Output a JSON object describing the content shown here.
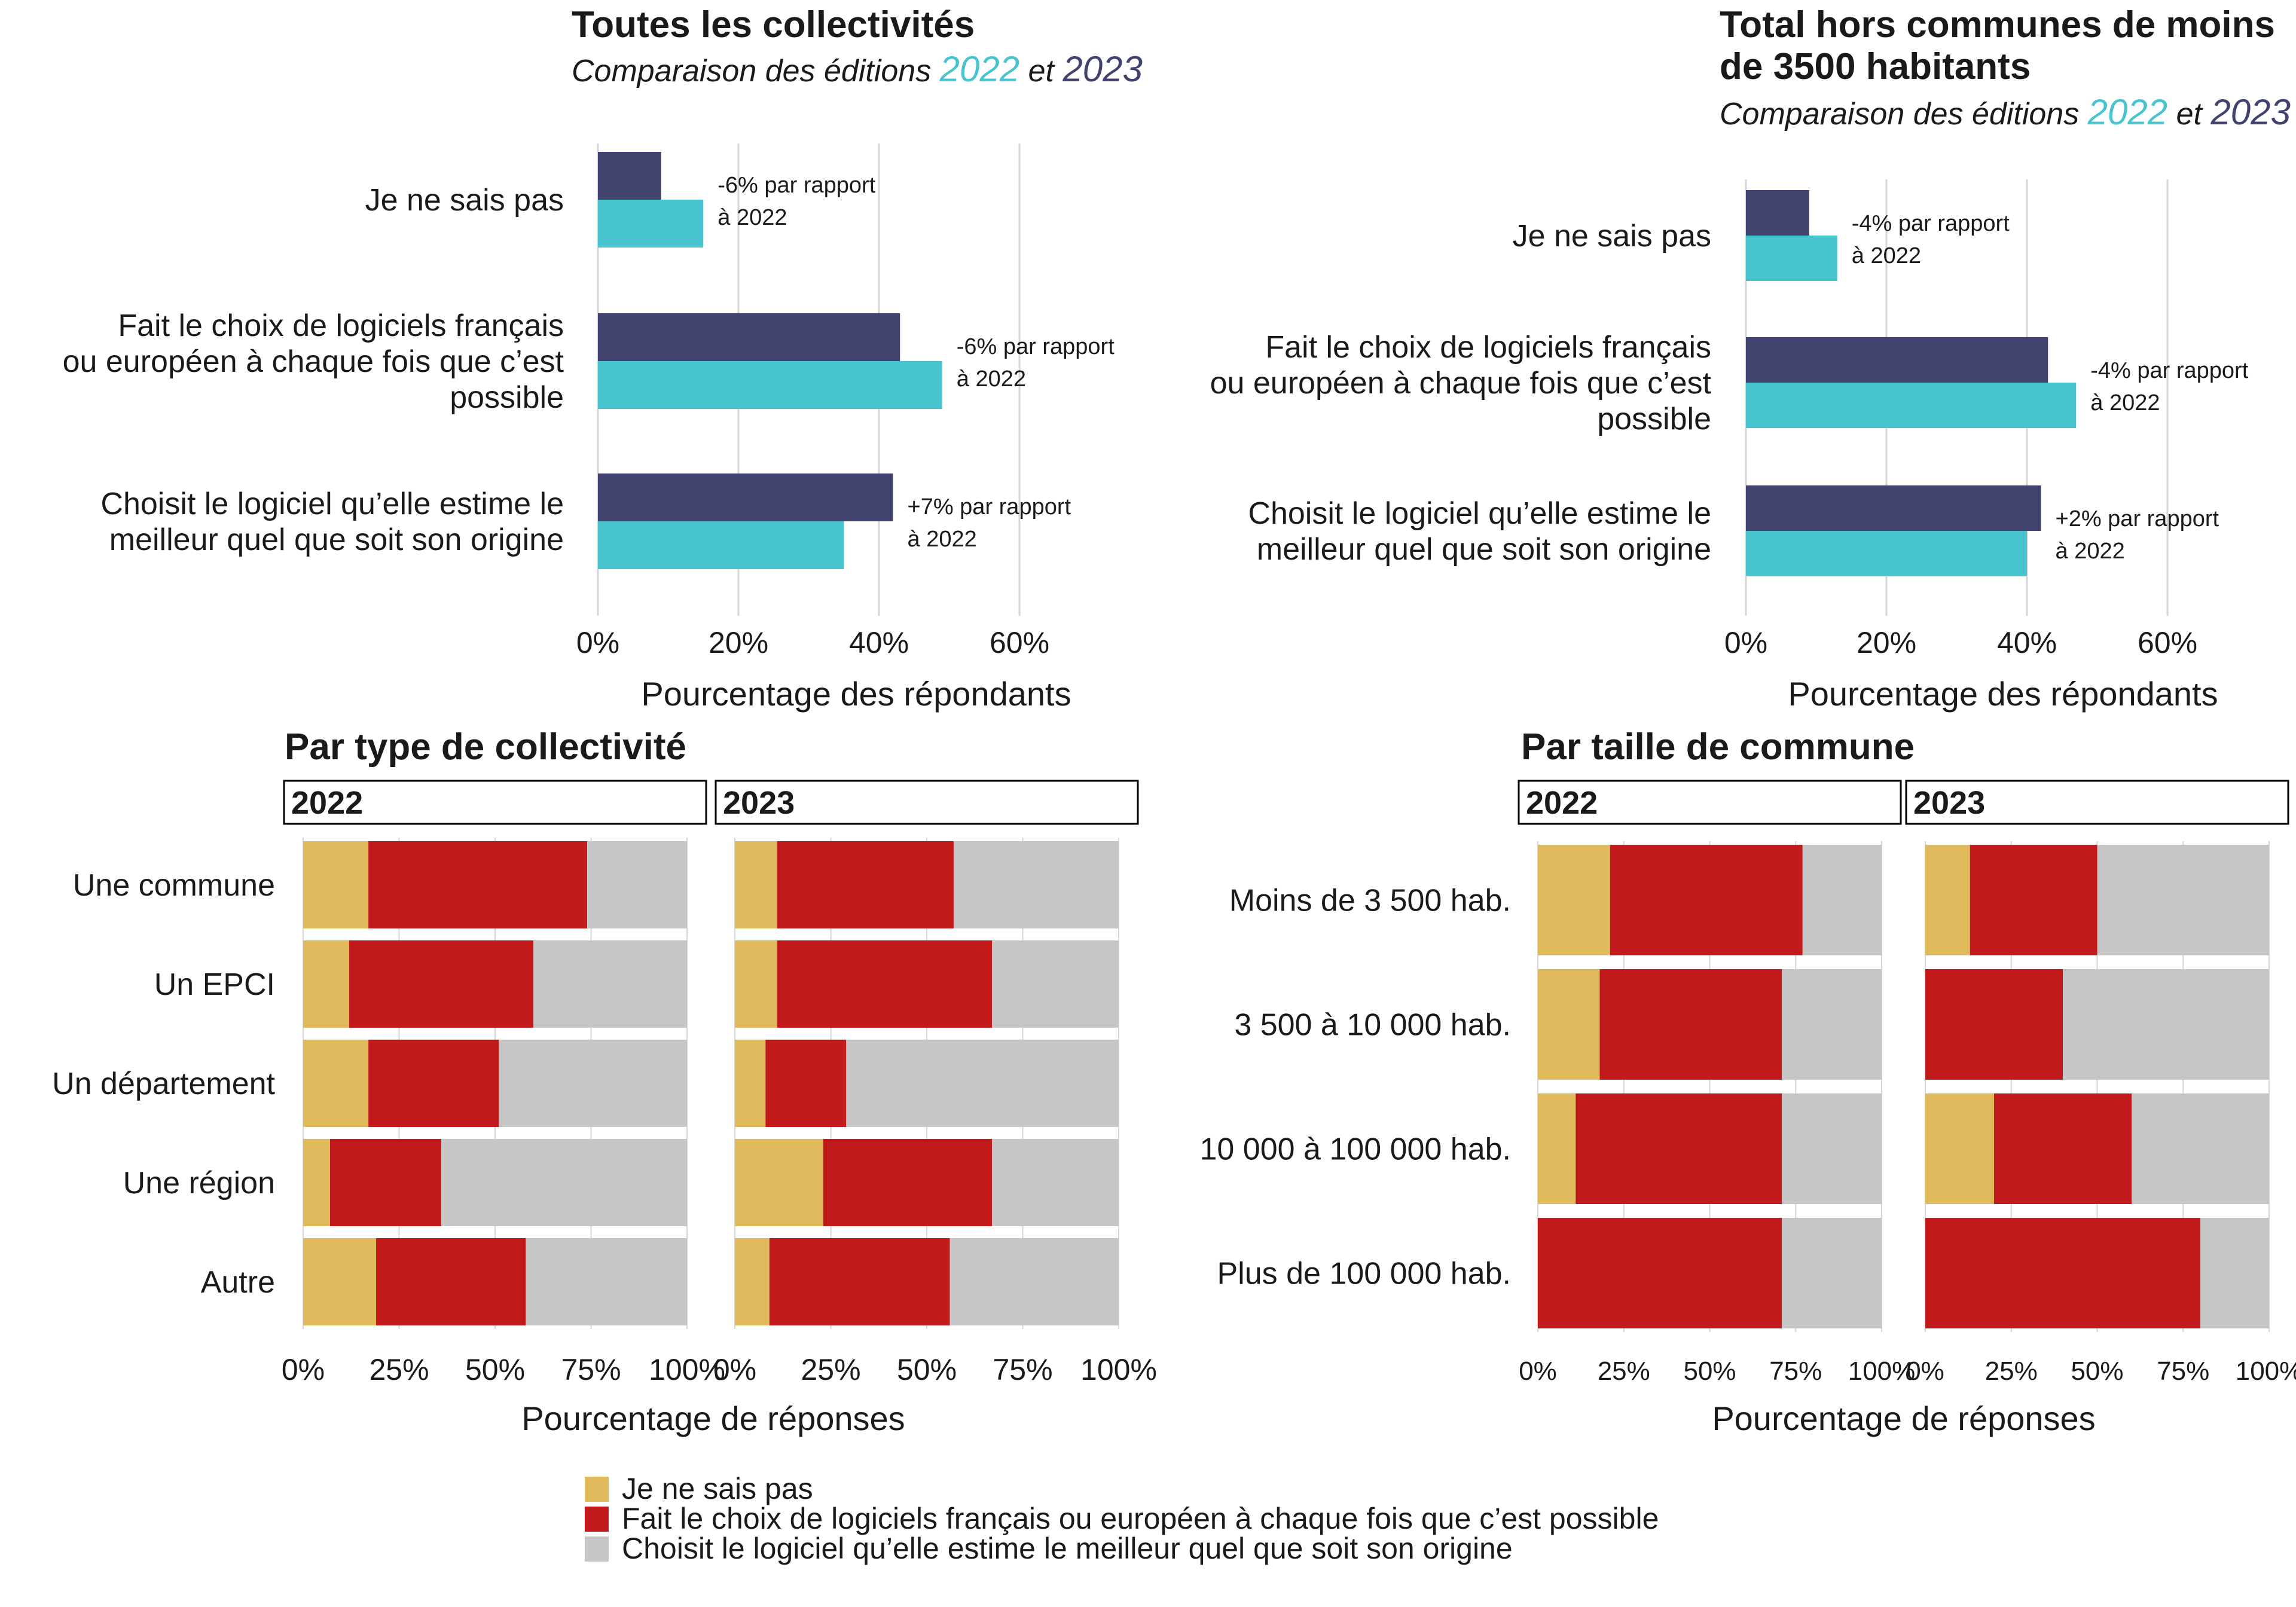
{
  "colors": {
    "dark_blue": "#41426E",
    "teal": "#48C4CE",
    "yellow": "#E2BA5E",
    "red": "#C2191A",
    "grey": "#C6C6C6",
    "text": "#1A1A1A",
    "grid": "#D6D6D6"
  },
  "chart_data": [
    {
      "type": "bar",
      "orientation": "horizontal",
      "title": "Toutes les collectivités",
      "subtitle": {
        "prefix": "Comparaison des éditions ",
        "year_a": "2022",
        "middle": " et ",
        "year_b": "2023",
        "year_a_color": "#48C4CE",
        "year_b_color": "#41426E"
      },
      "categories": [
        "Je ne sais pas",
        "Fait le choix de logiciels français ou européen à chaque fois que c’est possible",
        "Choisit le logiciel qu’elle estime le meilleur quel que soit son origine"
      ],
      "category_lines": [
        [
          "Je ne sais pas"
        ],
        [
          "Fait le choix de logiciels français",
          "ou européen à chaque fois que c’est",
          "possible"
        ],
        [
          "Choisit le logiciel qu’elle estime le",
          "meilleur quel que soit son origine"
        ]
      ],
      "series": [
        {
          "name": "2023",
          "color": "#41426E",
          "values": [
            9,
            43,
            42
          ]
        },
        {
          "name": "2022",
          "color": "#48C4CE",
          "values": [
            15,
            49,
            35
          ]
        }
      ],
      "annotations": [
        [
          "-6% par rapport",
          "à 2022"
        ],
        [
          "-6% par rapport",
          "à 2022"
        ],
        [
          "+7% par rapport",
          "à 2022"
        ]
      ],
      "xlabel": "Pourcentage des répondants",
      "xticks": [
        "0%",
        "20%",
        "40%",
        "60%"
      ],
      "xlim": [
        0,
        75
      ],
      "grid": true
    },
    {
      "type": "bar",
      "orientation": "horizontal",
      "title": "Total hors communes de moins de 3500 habitants",
      "title_lines": [
        "Total hors communes de moins",
        "de 3500 habitants"
      ],
      "subtitle": {
        "prefix": "Comparaison des éditions ",
        "year_a": "2022",
        "middle": " et ",
        "year_b": "2023",
        "year_a_color": "#48C4CE",
        "year_b_color": "#41426E"
      },
      "categories": [
        "Je ne sais pas",
        "Fait le choix de logiciels français ou européen à chaque fois que c’est possible",
        "Choisit le logiciel qu’elle estime le meilleur quel que soit son origine"
      ],
      "category_lines": [
        [
          "Je ne sais pas"
        ],
        [
          "Fait le choix de logiciels français",
          "ou européen à chaque fois que c’est",
          "possible"
        ],
        [
          "Choisit le logiciel qu’elle estime le",
          "meilleur quel que soit son origine"
        ]
      ],
      "series": [
        {
          "name": "2023",
          "color": "#41426E",
          "values": [
            9,
            43,
            42
          ]
        },
        {
          "name": "2022",
          "color": "#48C4CE",
          "values": [
            13,
            47,
            40
          ]
        }
      ],
      "annotations": [
        [
          "-4% par rapport",
          "à 2022"
        ],
        [
          "-4% par rapport",
          "à 2022"
        ],
        [
          "+2% par rapport",
          "à 2022"
        ]
      ],
      "xlabel": "Pourcentage des répondants",
      "xticks": [
        "0%",
        "20%",
        "40%",
        "60%"
      ],
      "xlim": [
        0,
        75
      ],
      "grid": true
    },
    {
      "type": "bar",
      "stacked": true,
      "orientation": "horizontal",
      "title": "Par type de collectivité",
      "xlabel": "Pourcentage de réponses",
      "xticks": [
        "0%",
        "25%",
        "50%",
        "75%",
        "100%"
      ],
      "xlim": [
        0,
        100
      ],
      "categories": [
        "Une commune",
        "Un EPCI",
        "Un département",
        "Une région",
        "Autre"
      ],
      "stack_order": [
        "Je ne sais pas",
        "Fait le choix de logiciels français ou européen à chaque fois que c’est possible",
        "Choisit le logiciel qu’elle estime le meilleur quel que soit son origine"
      ],
      "panels": [
        {
          "name": "2022",
          "values": [
            [
              17,
              57,
              26
            ],
            [
              12,
              48,
              40
            ],
            [
              17,
              34,
              49
            ],
            [
              7,
              29,
              64
            ],
            [
              19,
              39,
              42
            ]
          ]
        },
        {
          "name": "2023",
          "values": [
            [
              11,
              46,
              43
            ],
            [
              11,
              56,
              33
            ],
            [
              8,
              21,
              71
            ],
            [
              23,
              44,
              33
            ],
            [
              9,
              47,
              44
            ]
          ]
        }
      ]
    },
    {
      "type": "bar",
      "stacked": true,
      "orientation": "horizontal",
      "title": "Par taille de commune",
      "xlabel": "Pourcentage de réponses",
      "xticks": [
        "0%",
        "25%",
        "50%",
        "75%",
        "100%"
      ],
      "xlim": [
        0,
        100
      ],
      "categories": [
        "Moins de 3 500 hab.",
        "3 500 à 10 000 hab.",
        "10 000 à 100 000 hab.",
        "Plus de 100 000 hab."
      ],
      "stack_order": [
        "Je ne sais pas",
        "Fait le choix de logiciels français ou européen à chaque fois que c’est possible",
        "Choisit le logiciel qu’elle estime le meilleur quel que soit son origine"
      ],
      "panels": [
        {
          "name": "2022",
          "values": [
            [
              21,
              56,
              23
            ],
            [
              18,
              53,
              29
            ],
            [
              11,
              60,
              29
            ],
            [
              0,
              71,
              29
            ]
          ]
        },
        {
          "name": "2023",
          "values": [
            [
              13,
              37,
              50
            ],
            [
              0,
              40,
              60
            ],
            [
              20,
              40,
              40
            ],
            [
              0,
              80,
              20
            ]
          ]
        }
      ]
    }
  ],
  "legend": [
    {
      "label": "Je ne sais pas",
      "color": "#E2BA5E"
    },
    {
      "label": "Fait le choix de logiciels français ou européen à chaque fois que c’est possible",
      "color": "#C2191A"
    },
    {
      "label": "Choisit le logiciel qu’elle estime le meilleur quel que soit son origine",
      "color": "#C6C6C6"
    }
  ]
}
